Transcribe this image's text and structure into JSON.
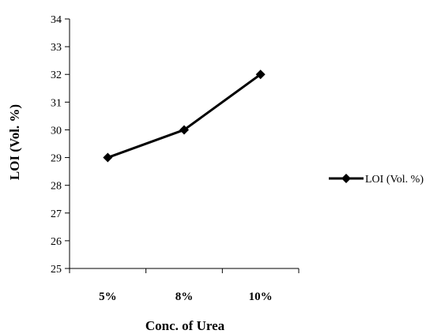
{
  "chart_data": {
    "type": "line",
    "title": "",
    "xlabel": "Conc. of Urea",
    "ylabel": "LOI (Vol. %)",
    "categories": [
      "5%",
      "8%",
      "10%"
    ],
    "ylim": [
      25,
      34
    ],
    "yticks": [
      "25",
      "26",
      "27",
      "28",
      "29",
      "30",
      "31",
      "32",
      "33",
      "34"
    ],
    "grid": false,
    "legend_position": "right",
    "series": [
      {
        "name": "LOI (Vol. %)",
        "values": [
          29,
          30,
          32
        ],
        "color": "#000000",
        "marker": "diamond"
      }
    ]
  }
}
